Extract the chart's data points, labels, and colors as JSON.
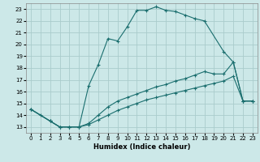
{
  "title": "",
  "xlabel": "Humidex (Indice chaleur)",
  "bg_color": "#cce8e8",
  "grid_color": "#aacccc",
  "line_color": "#1a6e6e",
  "xlim": [
    -0.5,
    23.5
  ],
  "ylim": [
    12.5,
    23.5
  ],
  "xticks": [
    0,
    1,
    2,
    3,
    4,
    5,
    6,
    7,
    8,
    9,
    10,
    11,
    12,
    13,
    14,
    15,
    16,
    17,
    18,
    19,
    20,
    21,
    22,
    23
  ],
  "yticks": [
    13,
    14,
    15,
    16,
    17,
    18,
    19,
    20,
    21,
    22,
    23
  ],
  "line1_x": [
    0,
    1,
    2,
    3,
    4,
    5,
    6,
    7,
    8,
    9,
    10,
    11,
    12,
    13,
    14,
    15,
    16,
    17,
    18,
    20,
    21,
    22,
    23
  ],
  "line1_y": [
    14.5,
    14.0,
    13.5,
    13.0,
    13.0,
    13.0,
    16.5,
    18.3,
    20.5,
    20.3,
    21.5,
    22.9,
    22.9,
    23.2,
    22.9,
    22.8,
    22.5,
    22.2,
    22.0,
    19.4,
    18.5,
    15.2,
    15.2
  ],
  "line2_x": [
    0,
    2,
    3,
    4,
    5,
    6,
    7,
    8,
    9,
    10,
    11,
    12,
    13,
    14,
    15,
    16,
    17,
    18,
    19,
    20,
    21,
    22,
    23
  ],
  "line2_y": [
    14.5,
    13.5,
    13.0,
    13.0,
    13.0,
    13.3,
    14.0,
    14.7,
    15.2,
    15.5,
    15.8,
    16.1,
    16.4,
    16.6,
    16.9,
    17.1,
    17.4,
    17.7,
    17.5,
    17.5,
    18.5,
    15.2,
    15.2
  ],
  "line3_x": [
    0,
    2,
    3,
    4,
    5,
    6,
    7,
    8,
    9,
    10,
    11,
    12,
    13,
    14,
    15,
    16,
    17,
    18,
    19,
    20,
    21,
    22,
    23
  ],
  "line3_y": [
    14.5,
    13.5,
    13.0,
    13.0,
    13.0,
    13.2,
    13.6,
    14.0,
    14.4,
    14.7,
    15.0,
    15.3,
    15.5,
    15.7,
    15.9,
    16.1,
    16.3,
    16.5,
    16.7,
    16.9,
    17.3,
    15.2,
    15.2
  ]
}
